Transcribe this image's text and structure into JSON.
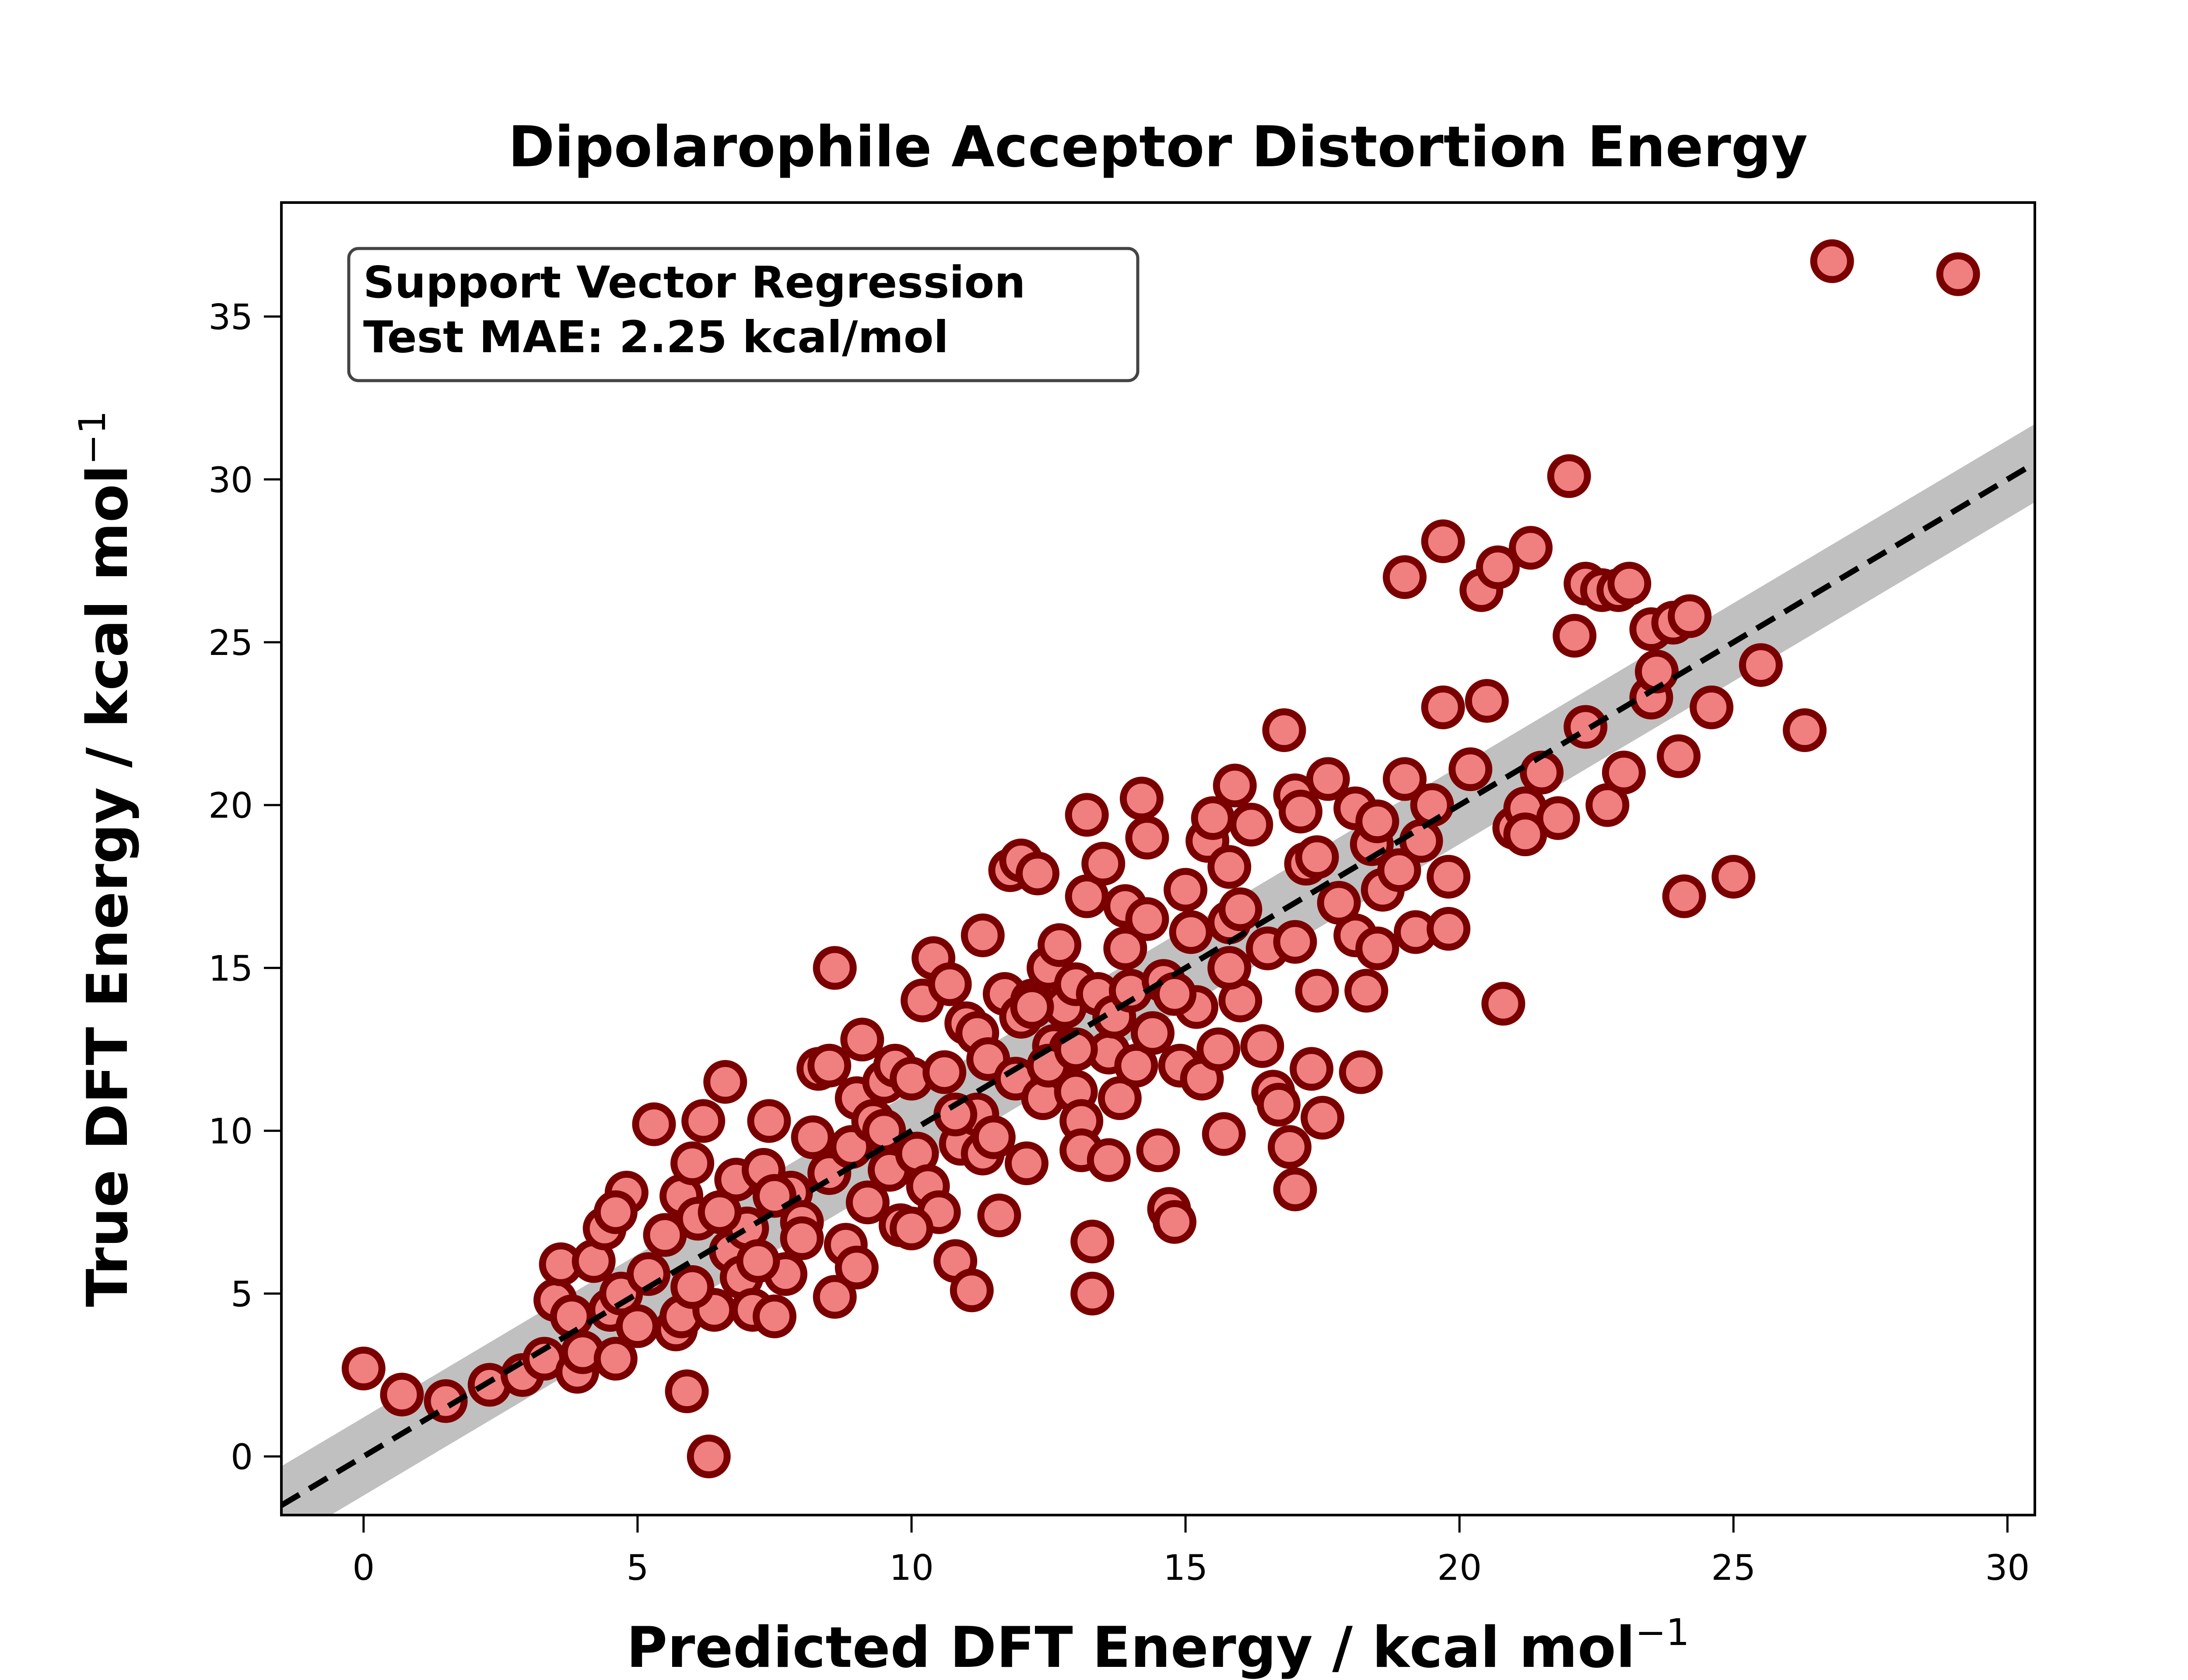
{
  "chart_data": {
    "type": "scatter",
    "title": "Dipolarophile Acceptor Distortion Energy",
    "xlabel": {
      "main": "Predicted DFT Energy / kcal mol",
      "sup": "−1"
    },
    "ylabel": {
      "main": "True DFT Energy / kcal mol",
      "sup": "−1"
    },
    "xlim": [
      -1.5,
      30.5
    ],
    "ylim": [
      -1.8,
      38.5
    ],
    "xticks": [
      0,
      5,
      10,
      15,
      20,
      25,
      30
    ],
    "yticks": [
      0,
      5,
      10,
      15,
      20,
      25,
      30,
      35
    ],
    "annotation": [
      "Support Vector Regression",
      "Test MAE: 2.25 kcal/mol"
    ],
    "annotation_position": "top-left",
    "grid": false,
    "reference_line": {
      "style": "dashed",
      "slope": 1.0,
      "intercept": 0.0,
      "band_halfwidth": 1.2,
      "band_color": "#bdbdbd"
    },
    "marker_fill": "#f08080",
    "marker_edge": "#7a0000",
    "points": [
      [
        0.0,
        2.7
      ],
      [
        0.7,
        1.9
      ],
      [
        1.5,
        1.7
      ],
      [
        2.3,
        2.2
      ],
      [
        2.9,
        2.5
      ],
      [
        3.3,
        3.0
      ],
      [
        3.5,
        4.8
      ],
      [
        3.6,
        5.9
      ],
      [
        3.8,
        4.3
      ],
      [
        3.9,
        2.6
      ],
      [
        4.0,
        3.2
      ],
      [
        4.2,
        6.0
      ],
      [
        4.4,
        7.0
      ],
      [
        4.5,
        4.5
      ],
      [
        4.6,
        3.0
      ],
      [
        4.7,
        5.0
      ],
      [
        4.8,
        8.1
      ],
      [
        4.6,
        7.5
      ],
      [
        5.0,
        4.0
      ],
      [
        5.3,
        10.2
      ],
      [
        5.5,
        6.8
      ],
      [
        5.7,
        3.9
      ],
      [
        5.8,
        8.0
      ],
      [
        5.8,
        4.3
      ],
      [
        5.9,
        2.0
      ],
      [
        6.0,
        9.0
      ],
      [
        6.1,
        7.3
      ],
      [
        6.2,
        10.3
      ],
      [
        6.3,
        0.0
      ],
      [
        6.4,
        4.5
      ],
      [
        6.6,
        11.5
      ],
      [
        6.7,
        6.3
      ],
      [
        6.8,
        8.5
      ],
      [
        6.9,
        5.5
      ],
      [
        7.0,
        7.0
      ],
      [
        7.1,
        4.5
      ],
      [
        7.3,
        8.8
      ],
      [
        7.4,
        10.3
      ],
      [
        7.5,
        4.3
      ],
      [
        7.7,
        5.6
      ],
      [
        7.8,
        8.1
      ],
      [
        8.0,
        7.2
      ],
      [
        8.2,
        9.8
      ],
      [
        8.3,
        11.9
      ],
      [
        8.5,
        12.0
      ],
      [
        8.5,
        8.7
      ],
      [
        8.6,
        15.0
      ],
      [
        8.6,
        4.9
      ],
      [
        8.8,
        6.5
      ],
      [
        8.9,
        9.5
      ],
      [
        9.0,
        11.0
      ],
      [
        9.1,
        12.8
      ],
      [
        9.2,
        7.8
      ],
      [
        9.3,
        10.3
      ],
      [
        9.5,
        11.5
      ],
      [
        9.6,
        8.8
      ],
      [
        9.7,
        12.0
      ],
      [
        9.8,
        7.1
      ],
      [
        10.0,
        11.6
      ],
      [
        10.1,
        9.3
      ],
      [
        10.2,
        14.0
      ],
      [
        10.3,
        8.3
      ],
      [
        10.4,
        15.3
      ],
      [
        10.5,
        7.5
      ],
      [
        10.6,
        11.8
      ],
      [
        10.7,
        14.5
      ],
      [
        10.8,
        6.0
      ],
      [
        10.9,
        9.6
      ],
      [
        11.0,
        13.3
      ],
      [
        11.1,
        5.1
      ],
      [
        11.2,
        10.5
      ],
      [
        11.2,
        13.0
      ],
      [
        11.3,
        16.0
      ],
      [
        11.3,
        9.3
      ],
      [
        11.4,
        12.2
      ],
      [
        11.6,
        7.4
      ],
      [
        11.7,
        14.2
      ],
      [
        11.8,
        18.0
      ],
      [
        11.9,
        11.6
      ],
      [
        12.0,
        18.3
      ],
      [
        12.0,
        13.5
      ],
      [
        12.1,
        9.0
      ],
      [
        12.2,
        14.0
      ],
      [
        12.3,
        17.9
      ],
      [
        12.4,
        11.0
      ],
      [
        12.5,
        15.0
      ],
      [
        12.6,
        12.6
      ],
      [
        12.7,
        15.7
      ],
      [
        12.8,
        13.8
      ],
      [
        12.9,
        12.5
      ],
      [
        13.0,
        11.2
      ],
      [
        13.0,
        14.5
      ],
      [
        13.1,
        10.3
      ],
      [
        13.1,
        9.4
      ],
      [
        13.2,
        17.2
      ],
      [
        13.2,
        19.7
      ],
      [
        13.3,
        5.0
      ],
      [
        13.3,
        6.6
      ],
      [
        13.4,
        14.2
      ],
      [
        13.5,
        18.2
      ],
      [
        13.6,
        12.4
      ],
      [
        13.6,
        9.1
      ],
      [
        13.7,
        13.5
      ],
      [
        13.8,
        11.0
      ],
      [
        13.9,
        15.6
      ],
      [
        13.9,
        16.9
      ],
      [
        14.0,
        14.3
      ],
      [
        14.1,
        12.0
      ],
      [
        14.2,
        20.2
      ],
      [
        14.3,
        19.0
      ],
      [
        14.4,
        13.0
      ],
      [
        14.5,
        9.4
      ],
      [
        14.6,
        14.6
      ],
      [
        14.7,
        7.6
      ],
      [
        14.8,
        7.2
      ],
      [
        14.9,
        12.0
      ],
      [
        15.0,
        17.4
      ],
      [
        15.1,
        16.1
      ],
      [
        15.2,
        13.8
      ],
      [
        15.3,
        11.6
      ],
      [
        15.4,
        18.9
      ],
      [
        15.5,
        19.6
      ],
      [
        15.6,
        12.5
      ],
      [
        15.7,
        9.9
      ],
      [
        15.8,
        16.4
      ],
      [
        15.8,
        18.1
      ],
      [
        15.9,
        20.6
      ],
      [
        16.0,
        14.0
      ],
      [
        16.2,
        19.4
      ],
      [
        16.4,
        12.6
      ],
      [
        16.5,
        15.6
      ],
      [
        16.6,
        11.2
      ],
      [
        16.7,
        10.8
      ],
      [
        16.8,
        22.3
      ],
      [
        16.9,
        9.5
      ],
      [
        17.0,
        8.2
      ],
      [
        17.0,
        15.8
      ],
      [
        17.0,
        20.3
      ],
      [
        17.1,
        19.8
      ],
      [
        17.2,
        18.2
      ],
      [
        17.3,
        11.9
      ],
      [
        17.4,
        14.3
      ],
      [
        17.4,
        18.4
      ],
      [
        17.5,
        10.4
      ],
      [
        17.6,
        20.8
      ],
      [
        18.1,
        19.9
      ],
      [
        18.1,
        16.0
      ],
      [
        18.2,
        11.8
      ],
      [
        18.3,
        14.3
      ],
      [
        18.4,
        18.8
      ],
      [
        18.5,
        15.6
      ],
      [
        18.6,
        17.4
      ],
      [
        18.9,
        18.0
      ],
      [
        19.0,
        20.8
      ],
      [
        19.0,
        27.0
      ],
      [
        19.2,
        16.1
      ],
      [
        19.3,
        18.9
      ],
      [
        19.5,
        20.0
      ],
      [
        19.7,
        23.0
      ],
      [
        19.7,
        28.1
      ],
      [
        19.8,
        17.8
      ],
      [
        19.8,
        16.2
      ],
      [
        20.2,
        21.1
      ],
      [
        20.4,
        26.6
      ],
      [
        20.5,
        23.2
      ],
      [
        20.7,
        27.3
      ],
      [
        20.8,
        13.9
      ],
      [
        21.0,
        19.3
      ],
      [
        21.2,
        19.9
      ],
      [
        21.2,
        19.1
      ],
      [
        21.3,
        27.9
      ],
      [
        21.5,
        21.0
      ],
      [
        21.8,
        19.6
      ],
      [
        22.0,
        30.1
      ],
      [
        22.1,
        25.2
      ],
      [
        22.3,
        22.4
      ],
      [
        22.3,
        26.8
      ],
      [
        22.6,
        26.6
      ],
      [
        22.7,
        20.0
      ],
      [
        22.9,
        26.6
      ],
      [
        23.0,
        21.0
      ],
      [
        23.1,
        26.8
      ],
      [
        23.5,
        25.4
      ],
      [
        23.5,
        23.3
      ],
      [
        23.6,
        24.1
      ],
      [
        23.9,
        25.6
      ],
      [
        24.0,
        21.5
      ],
      [
        24.1,
        17.2
      ],
      [
        24.2,
        25.8
      ],
      [
        24.6,
        23.0
      ],
      [
        25.0,
        17.8
      ],
      [
        25.5,
        24.3
      ],
      [
        26.3,
        22.3
      ],
      [
        26.8,
        36.7
      ],
      [
        29.1,
        36.3
      ],
      [
        7.2,
        6.0
      ],
      [
        6.0,
        5.2
      ],
      [
        5.2,
        5.6
      ],
      [
        8.0,
        6.7
      ],
      [
        9.5,
        10.0
      ],
      [
        10.8,
        10.5
      ],
      [
        12.5,
        12.0
      ],
      [
        11.5,
        9.8
      ],
      [
        14.8,
        14.2
      ],
      [
        15.8,
        15.0
      ],
      [
        16.0,
        16.8
      ],
      [
        17.8,
        17.0
      ],
      [
        18.5,
        19.5
      ],
      [
        13.0,
        12.5
      ],
      [
        12.2,
        13.8
      ],
      [
        9.0,
        5.8
      ],
      [
        10.0,
        7.0
      ],
      [
        7.5,
        8.0
      ],
      [
        6.5,
        7.5
      ],
      [
        14.3,
        16.5
      ]
    ]
  }
}
